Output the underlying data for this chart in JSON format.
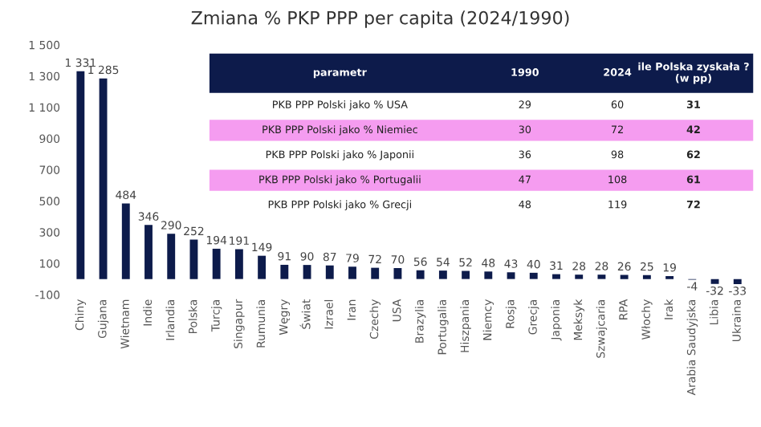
{
  "chart_data": [
    {
      "type": "bar",
      "title": "Zmiana % PKP PPP per capita (2024/1990)",
      "categories": [
        "Chiny",
        "Gujana",
        "Wietnam",
        "Indie",
        "Irlandia",
        "Polska",
        "Turcja",
        "Singapur",
        "Rumunia",
        "Węgry",
        "Świat",
        "Izrael",
        "Iran",
        "Czechy",
        "USA",
        "Brazylia",
        "Portugalia",
        "Hiszpania",
        "Niemcy",
        "Rosja",
        "Grecja",
        "Japonia",
        "Meksyk",
        "Szwajcaria",
        "RPA",
        "Włochy",
        "Irak",
        "Arabia Saudyjska",
        "Libia",
        "Ukraina"
      ],
      "values": [
        1331,
        1285,
        484,
        346,
        290,
        252,
        194,
        191,
        149,
        91,
        90,
        87,
        79,
        72,
        70,
        56,
        54,
        52,
        48,
        43,
        40,
        31,
        28,
        28,
        26,
        25,
        19,
        -4,
        -32,
        -33
      ],
      "value_labels": [
        "1 331",
        "1 285",
        "484",
        "346",
        "290",
        "252",
        "194",
        "191",
        "149",
        "91",
        "90",
        "87",
        "79",
        "72",
        "70",
        "56",
        "54",
        "52",
        "48",
        "43",
        "40",
        "31",
        "28",
        "28",
        "26",
        "25",
        "19",
        "-4",
        "-32",
        "-33"
      ],
      "color": "#0d1b4b",
      "ylim": [
        -100,
        1500
      ],
      "yticks": [
        -100,
        100,
        300,
        500,
        700,
        900,
        {
          "value": 1100,
          "label": "1 100"
        },
        {
          "value": 1300,
          "label": "1 300"
        },
        {
          "value": 1500,
          "label": "1 500"
        }
      ],
      "grid": false
    },
    {
      "type": "other",
      "annotations": [
        "parametr"
      ],
      "categories": [
        "PKB PPP Polski jako % USA",
        "PKB PPP Polski jako % Niemiec",
        "PKB PPP Polski jako % Japonii",
        "PKB PPP Polski jako % Portugalii",
        "PKB PPP Polski jako % Grecji"
      ],
      "series": [
        {
          "name": "1990",
          "values": [
            29,
            30,
            36,
            47,
            48
          ]
        },
        {
          "name": "2024",
          "values": [
            60,
            72,
            98,
            108,
            119
          ]
        },
        {
          "name": "ile Polska zyskała ?\n(w pp)",
          "values": [
            31,
            42,
            62,
            61,
            72
          ]
        }
      ],
      "data_labels": true,
      "colors": [
        "#ffffff",
        "#f59cf0",
        "#ffffff",
        "#f59cf0",
        "#ffffff"
      ]
    }
  ]
}
